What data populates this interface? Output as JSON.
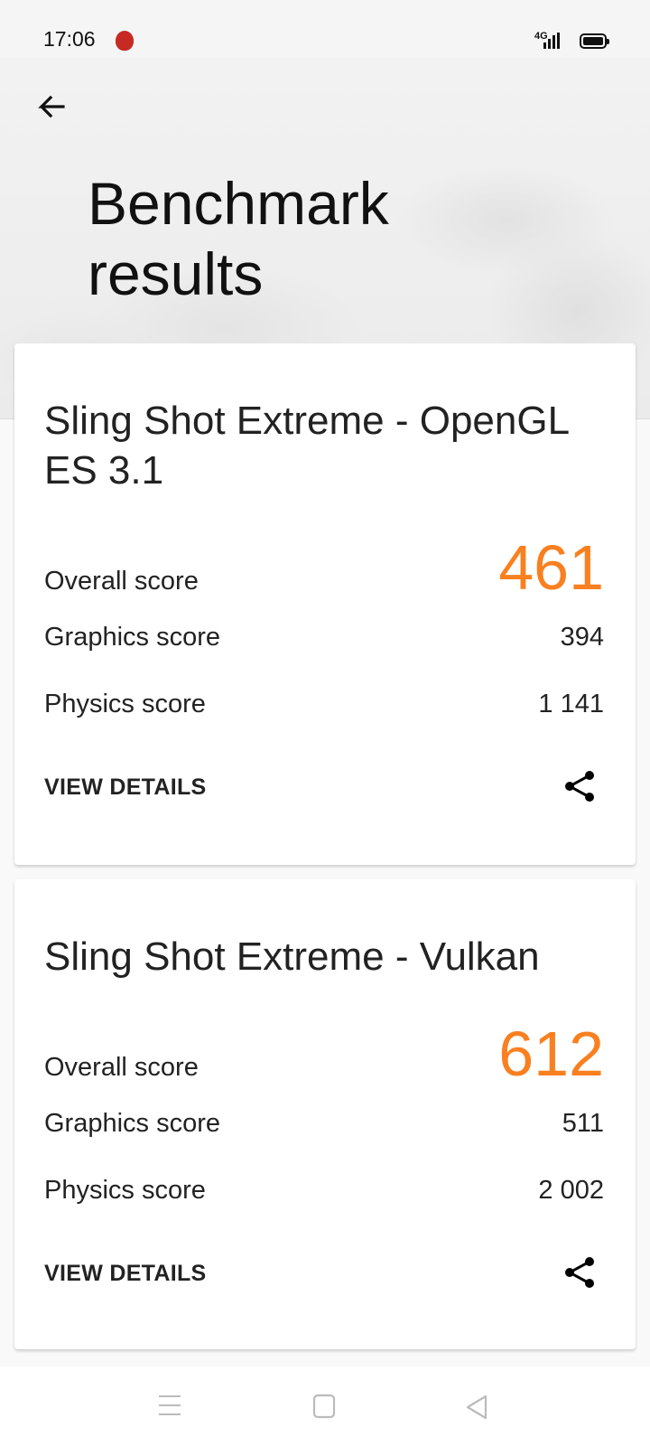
{
  "status_bar": {
    "time": "17:06",
    "network": "4G"
  },
  "header": {
    "title_line1": "Benchmark",
    "title_line2": "results"
  },
  "accent_color": "#f98020",
  "results": [
    {
      "title": "Sling Shot Extreme - OpenGL ES 3.1",
      "overall_label": "Overall score",
      "overall": "461",
      "graphics_label": "Graphics score",
      "graphics": "394",
      "physics_label": "Physics score",
      "physics": "1 141",
      "details_label": "VIEW DETAILS"
    },
    {
      "title": "Sling Shot Extreme - Vulkan",
      "overall_label": "Overall score",
      "overall": "612",
      "graphics_label": "Graphics score",
      "graphics": "511",
      "physics_label": "Physics score",
      "physics": "2 002",
      "details_label": "VIEW DETAILS"
    }
  ],
  "icons": [
    "back-arrow-icon",
    "share-icon",
    "menu-icon",
    "home-icon",
    "back-triangle-icon"
  ]
}
